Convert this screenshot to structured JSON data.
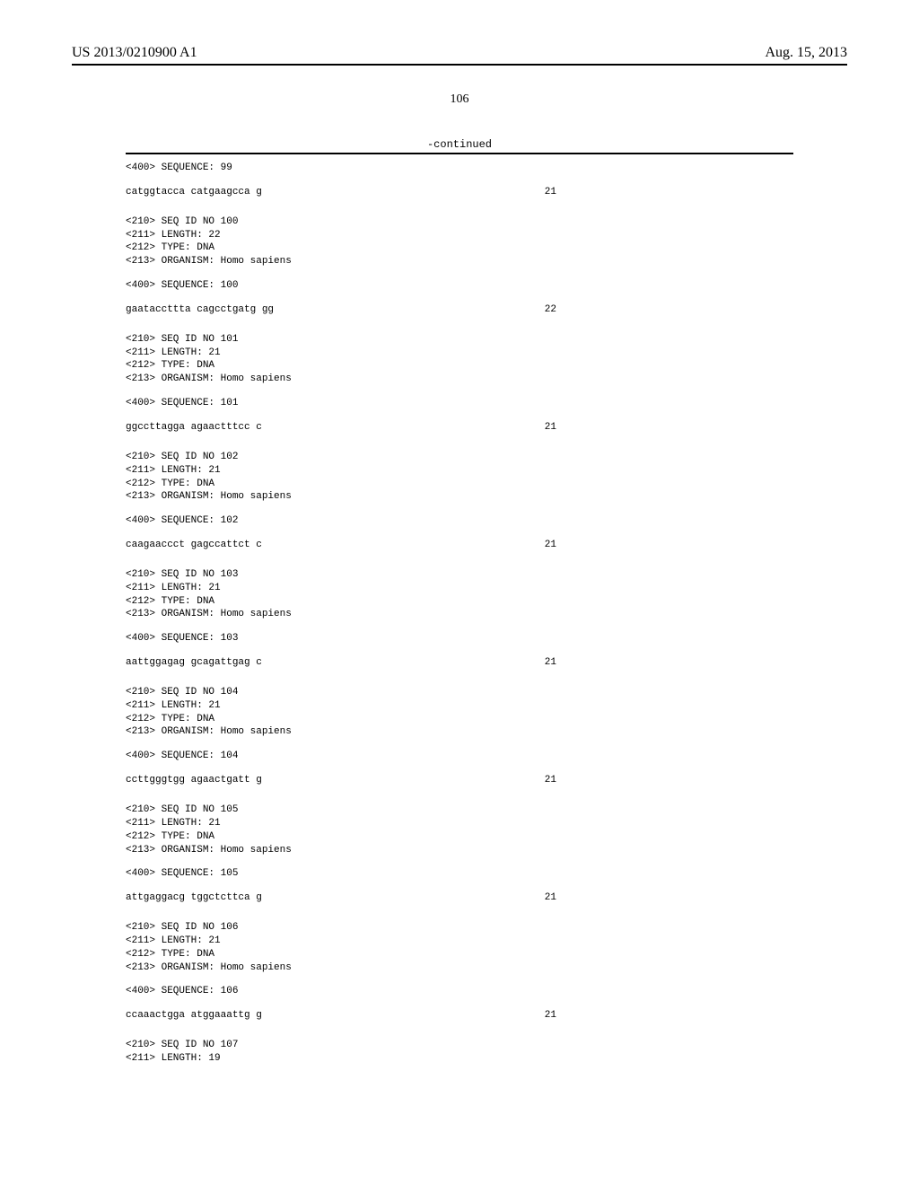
{
  "header": {
    "pub_number": "US 2013/0210900 A1",
    "pub_date": "Aug. 15, 2013"
  },
  "page_number": "106",
  "continued_label": "-continued",
  "sequences": [
    {
      "seq_ref": "<400> SEQUENCE: 99",
      "seq_text": "catggtacca catgaagcca g",
      "seq_len": "21"
    },
    {
      "meta": [
        "<210> SEQ ID NO 100",
        "<211> LENGTH: 22",
        "<212> TYPE: DNA",
        "<213> ORGANISM: Homo sapiens"
      ],
      "seq_ref": "<400> SEQUENCE: 100",
      "seq_text": "gaataccttta cagcctgatg gg",
      "seq_len": "22"
    },
    {
      "meta": [
        "<210> SEQ ID NO 101",
        "<211> LENGTH: 21",
        "<212> TYPE: DNA",
        "<213> ORGANISM: Homo sapiens"
      ],
      "seq_ref": "<400> SEQUENCE: 101",
      "seq_text": "ggccttagga agaactttcc c",
      "seq_len": "21"
    },
    {
      "meta": [
        "<210> SEQ ID NO 102",
        "<211> LENGTH: 21",
        "<212> TYPE: DNA",
        "<213> ORGANISM: Homo sapiens"
      ],
      "seq_ref": "<400> SEQUENCE: 102",
      "seq_text": "caagaaccct gagccattct c",
      "seq_len": "21"
    },
    {
      "meta": [
        "<210> SEQ ID NO 103",
        "<211> LENGTH: 21",
        "<212> TYPE: DNA",
        "<213> ORGANISM: Homo sapiens"
      ],
      "seq_ref": "<400> SEQUENCE: 103",
      "seq_text": "aattggagag gcagattgag c",
      "seq_len": "21"
    },
    {
      "meta": [
        "<210> SEQ ID NO 104",
        "<211> LENGTH: 21",
        "<212> TYPE: DNA",
        "<213> ORGANISM: Homo sapiens"
      ],
      "seq_ref": "<400> SEQUENCE: 104",
      "seq_text": "ccttgggtgg agaactgatt g",
      "seq_len": "21"
    },
    {
      "meta": [
        "<210> SEQ ID NO 105",
        "<211> LENGTH: 21",
        "<212> TYPE: DNA",
        "<213> ORGANISM: Homo sapiens"
      ],
      "seq_ref": "<400> SEQUENCE: 105",
      "seq_text": "attgaggacg tggctcttca g",
      "seq_len": "21"
    },
    {
      "meta": [
        "<210> SEQ ID NO 106",
        "<211> LENGTH: 21",
        "<212> TYPE: DNA",
        "<213> ORGANISM: Homo sapiens"
      ],
      "seq_ref": "<400> SEQUENCE: 106",
      "seq_text": "ccaaactgga atggaaattg g",
      "seq_len": "21"
    },
    {
      "meta": [
        "<210> SEQ ID NO 107",
        "<211> LENGTH: 19"
      ]
    }
  ]
}
